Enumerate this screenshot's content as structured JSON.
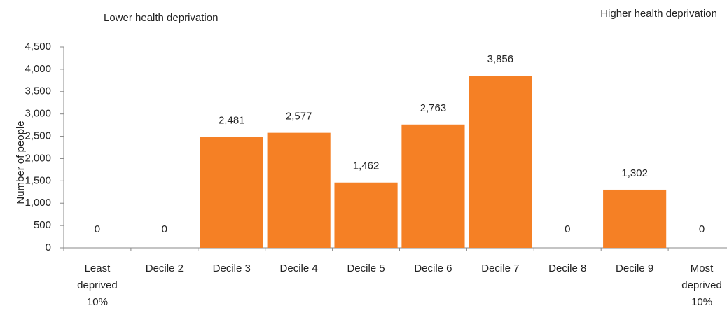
{
  "chart_data": {
    "type": "bar",
    "annotations": [
      "Lower health deprivation",
      "Higher health deprivation"
    ],
    "y_label": "Number of people",
    "categories": [
      "Least deprived 10%",
      "Decile 2",
      "Decile 3",
      "Decile 4",
      "Decile 5",
      "Decile 6",
      "Decile 7",
      "Decile 8",
      "Decile 9",
      "Most deprived 10%"
    ],
    "values": [
      0,
      0,
      2481,
      2577,
      1462,
      2763,
      3856,
      0,
      1302,
      0
    ],
    "value_labels": [
      "0",
      "0",
      "2,481",
      "2,577",
      "1,462",
      "2,763",
      "3,856",
      "0",
      "1,302",
      "0"
    ],
    "color": "#f58025",
    "ylim": [
      0,
      4500
    ],
    "yticks": [
      0,
      500,
      {
        "value": 1000,
        "label": "1,000"
      },
      {
        "value": 1500,
        "label": "1,500"
      },
      {
        "value": 2000,
        "label": "2,000"
      },
      {
        "value": 2500,
        "label": "2,500"
      },
      {
        "value": 3000,
        "label": "3,000"
      },
      {
        "value": 3500,
        "label": "3,500"
      },
      {
        "value": 4000,
        "label": "4,000"
      },
      {
        "value": 4500,
        "label": "4,500"
      }
    ],
    "grid": false
  }
}
